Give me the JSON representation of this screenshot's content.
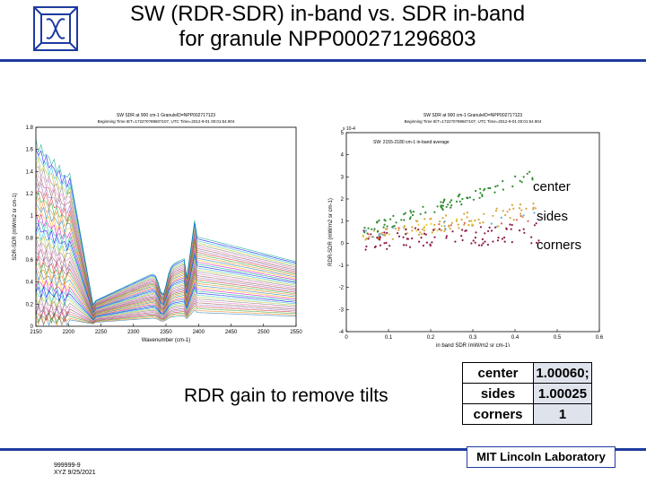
{
  "slide": {
    "title_line1": "SW (RDR-SDR) in-band vs. SDR in-band",
    "title_line2": "for granule NPP000271296803",
    "rdr_text": "RDR gain to remove tilts",
    "footer_code": "999999-9",
    "footer_date": "XYZ 9/25/2021",
    "mit_label": "MIT Lincoln Laboratory"
  },
  "labels": {
    "center": "center",
    "sides": "sides",
    "corners": "corners"
  },
  "gain_table": [
    {
      "key": "center",
      "value": "1.00060;"
    },
    {
      "key": "sides",
      "value": "1.00025"
    },
    {
      "key": "corners",
      "value": "1"
    }
  ],
  "chart_data": [
    {
      "type": "line",
      "title": "SW SDR at 900 cm-1 GranuleID=NPP00271?123",
      "subtitle": "Beginning Time IET=1722?0?8960?107, UTC Time=2012-9-01 00:01:54.904",
      "xlabel": "Wavenumber (cm-1)",
      "ylabel": "SDR-SDR (mW/m2 sr cm-1)",
      "xlim": [
        2150,
        2550
      ],
      "ylim": [
        0,
        1.8
      ],
      "xticks": [
        "2150",
        "2200",
        "2250",
        "2300",
        "2350",
        "2400",
        "2450",
        "2500",
        "2550"
      ],
      "yticks": [
        "0",
        "0.2",
        "0.4",
        "0.6",
        "0.8",
        "1",
        "1.2",
        "1.4",
        "1.6",
        "1.8"
      ],
      "series_count": 40,
      "note": "many overlapping colored spectra"
    },
    {
      "type": "scatter",
      "title": "SW SDR at 900 cm-1 GranuleID=NPP00271?123",
      "subtitle": "Beginning Time IET=1722?0?8960?107, UTC Time=2012-9-01 00:01:54.904",
      "annotation": "SW: 2155-2180 cm-1 in-band average",
      "exponent": "x 10-4",
      "xlabel": "in band SDR (mW/m2 sr cm-1)",
      "ylabel": "RDR-SDR (mW/m2 sr cm-1)",
      "xlim": [
        0,
        0.5
      ],
      "ylim": [
        -4,
        5
      ],
      "xticks": [
        "0",
        "0.1",
        "0.2",
        "0.3",
        "0.4",
        "0.5",
        "0.6"
      ],
      "yticks": [
        "-4",
        "-3",
        "-2",
        "-1",
        "0",
        "1",
        "2",
        "3",
        "4",
        "5"
      ],
      "series": [
        {
          "name": "center",
          "color": "#2e8b2e",
          "slope": 6.2,
          "intercept": 0.3
        },
        {
          "name": "sides",
          "color": "#d4a43a",
          "slope": 3.0,
          "intercept": 0.2
        },
        {
          "name": "corners",
          "color": "#8b1a4a",
          "slope": 0.8,
          "intercept": 0.1
        }
      ]
    }
  ]
}
